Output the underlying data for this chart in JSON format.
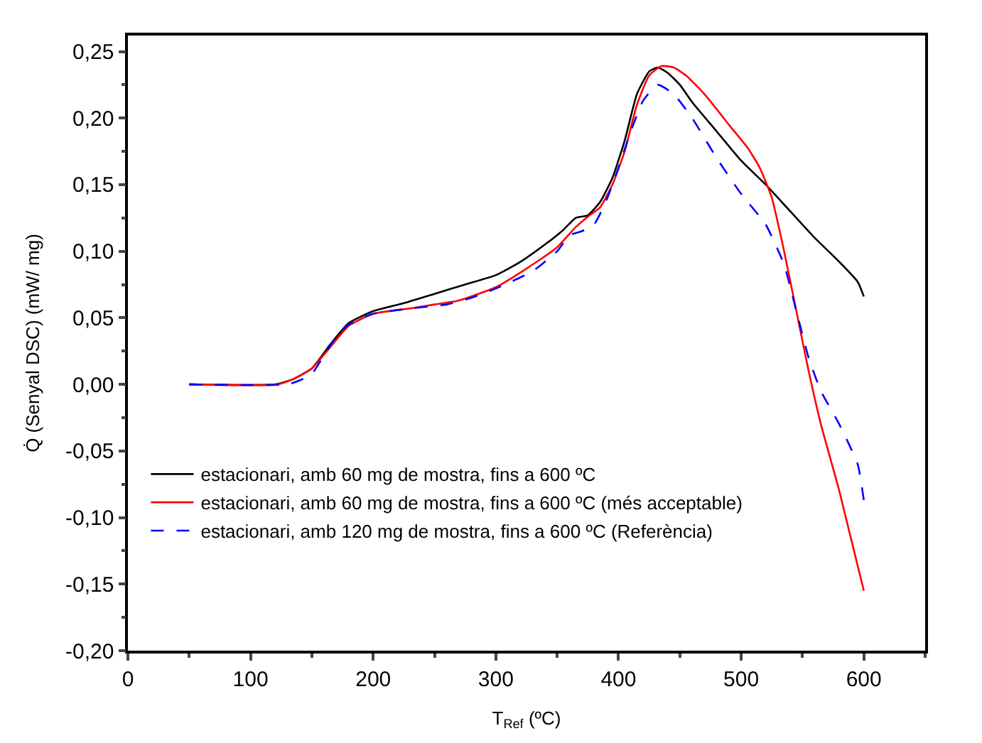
{
  "chart_data": {
    "type": "line",
    "xlabel": "T$_{Ref}$ (ºC)",
    "ylabel": "Q̇ (Senyal DSC) (mW/ mg)",
    "xlim": [
      0,
      650
    ],
    "xticks": [
      0,
      100,
      200,
      300,
      400,
      500,
      600
    ],
    "ylim": [
      -0.2,
      0.262
    ],
    "yticks": [
      {
        "value": -0.2,
        "label": "-0,20"
      },
      {
        "value": -0.15,
        "label": "-0,15"
      },
      {
        "value": -0.1,
        "label": "-0,10"
      },
      {
        "value": -0.05,
        "label": "-0,05"
      },
      {
        "value": 0,
        "label": "0,00"
      },
      {
        "value": 0.05,
        "label": "0,05"
      },
      {
        "value": 0.1,
        "label": "0,10"
      },
      {
        "value": 0.15,
        "label": "0,15"
      },
      {
        "value": 0.2,
        "label": "0,20"
      },
      {
        "value": 0.25,
        "label": "0,25"
      }
    ],
    "legend": "bottom left",
    "series": [
      {
        "name": "estacionari, amb 60 mg de mostra, fins a 600 ºC",
        "color": "#000000",
        "line_style": "solid",
        "x": [
          50,
          120,
          135,
          150,
          165,
          180,
          200,
          225,
          250,
          275,
          300,
          320,
          340,
          355,
          365,
          375,
          385,
          395,
          405,
          415,
          425,
          432,
          440,
          450,
          460,
          480,
          500,
          520,
          540,
          560,
          580,
          595,
          600
        ],
        "values": [
          0,
          0,
          0.004,
          0.012,
          0.03,
          0.046,
          0.055,
          0.061,
          0.068,
          0.075,
          0.082,
          0.092,
          0.105,
          0.116,
          0.125,
          0.127,
          0.137,
          0.155,
          0.183,
          0.218,
          0.235,
          0.238,
          0.234,
          0.225,
          0.212,
          0.19,
          0.168,
          0.15,
          0.13,
          0.11,
          0.092,
          0.077,
          0.066
        ]
      },
      {
        "name": "estacionari, amb 60 mg de mostra, fins a 600 ºC (més acceptable)",
        "color": "#ff0000",
        "line_style": "solid",
        "x": [
          50,
          122,
          135,
          150,
          165,
          180,
          200,
          230,
          250,
          270,
          300,
          325,
          350,
          365,
          375,
          385,
          395,
          405,
          415,
          425,
          435,
          445,
          455,
          470,
          490,
          505,
          515,
          525,
          535,
          545,
          555,
          565,
          580,
          600
        ],
        "values": [
          0,
          0,
          0.004,
          0.012,
          0.028,
          0.044,
          0.053,
          0.057,
          0.06,
          0.063,
          0.073,
          0.087,
          0.103,
          0.118,
          0.126,
          0.133,
          0.15,
          0.175,
          0.21,
          0.232,
          0.239,
          0.238,
          0.232,
          0.218,
          0.195,
          0.178,
          0.163,
          0.14,
          0.1,
          0.055,
          0.01,
          -0.03,
          -0.08,
          -0.155
        ]
      },
      {
        "name": "estacionari, amb 120 mg de mostra, fins a 600 ºC (Referència)",
        "color": "#0000ff",
        "line_style": "dashed",
        "x": [
          50,
          130,
          140,
          150,
          160,
          170,
          180,
          200,
          230,
          260,
          280,
          300,
          330,
          350,
          360,
          370,
          380,
          390,
          400,
          410,
          420,
          432,
          445,
          460,
          480,
          500,
          520,
          535,
          545,
          555,
          565,
          580,
          595,
          600
        ],
        "values": [
          0,
          0,
          0.003,
          0.008,
          0.022,
          0.036,
          0.045,
          0.053,
          0.057,
          0.06,
          0.065,
          0.072,
          0.085,
          0.1,
          0.112,
          0.115,
          0.12,
          0.138,
          0.163,
          0.19,
          0.213,
          0.225,
          0.218,
          0.2,
          0.17,
          0.143,
          0.12,
          0.09,
          0.055,
          0.02,
          -0.005,
          -0.03,
          -0.06,
          -0.087
        ]
      }
    ]
  }
}
